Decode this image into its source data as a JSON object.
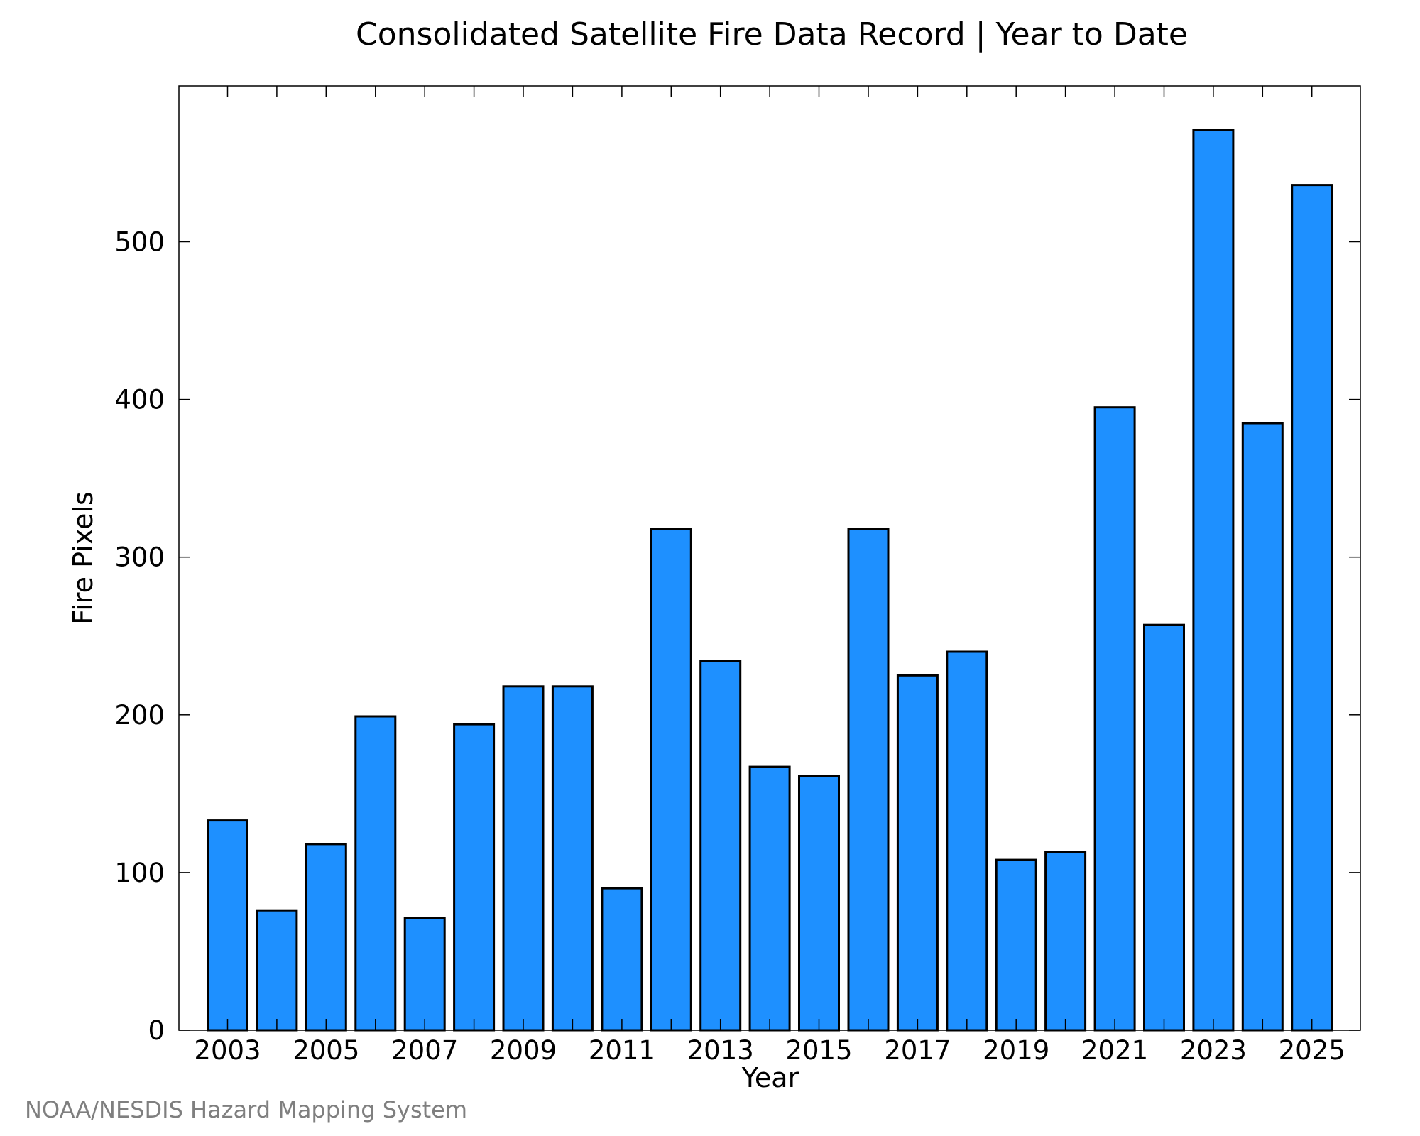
{
  "chart_data": {
    "type": "bar",
    "title": "Consolidated Satellite Fire Data Record | Year to Date",
    "xlabel": "Year",
    "ylabel": "Fire Pixels",
    "categories": [
      "2003",
      "2004",
      "2005",
      "2006",
      "2007",
      "2008",
      "2009",
      "2010",
      "2011",
      "2012",
      "2013",
      "2014",
      "2015",
      "2016",
      "2017",
      "2018",
      "2019",
      "2020",
      "2021",
      "2022",
      "2023",
      "2024",
      "2025"
    ],
    "values": [
      133,
      76,
      118,
      199,
      71,
      194,
      218,
      218,
      90,
      318,
      234,
      167,
      161,
      318,
      225,
      240,
      108,
      113,
      395,
      257,
      571,
      385,
      536
    ],
    "x_tick_labels": [
      "2003",
      "2005",
      "2007",
      "2009",
      "2011",
      "2013",
      "2015",
      "2017",
      "2019",
      "2021",
      "2023",
      "2025"
    ],
    "y_ticks": [
      0,
      100,
      200,
      300,
      400,
      500
    ],
    "ylim": [
      0,
      600
    ],
    "grid": false,
    "bar_color": "#1e90ff",
    "bar_edge_color": "#000000"
  },
  "credit": "NOAA/NESDIS Hazard Mapping System"
}
